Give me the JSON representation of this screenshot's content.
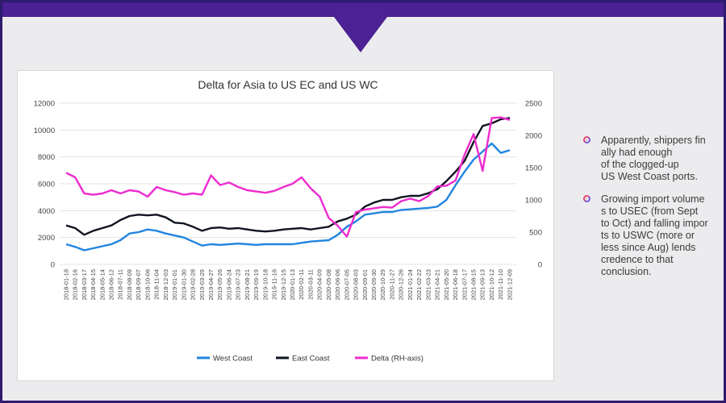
{
  "colors": {
    "frame": "#2e1a6e",
    "banner": "#4b2193",
    "background": "#ececee",
    "west_coast": "#2185e0",
    "east_coast": "#111522",
    "delta": "#ee2bcf"
  },
  "notes": [
    {
      "icon": "bullet-ring-icon",
      "text": "Apparently, shippers fin\nally had enough\nof the clogged-up\nUS West Coast ports."
    },
    {
      "icon": "bullet-ring-icon",
      "text": "Growing import volume\ns to USEC (from Sept\nto Oct) and falling impor\nts to USWC (more or\nless since Aug) lends\ncredence to that\nconclusion."
    }
  ],
  "chart_data": {
    "type": "line",
    "title": "Delta for Asia to US EC and US WC",
    "left_axis": {
      "ylim": [
        0,
        12000
      ],
      "ticks": [
        "0",
        "2000",
        "4000",
        "6000",
        "8000",
        "10000",
        "12000"
      ]
    },
    "right_axis": {
      "ylim": [
        0,
        2500
      ],
      "ticks": [
        "0",
        "500",
        "1000",
        "1500",
        "2000",
        "2500"
      ]
    },
    "grid": true,
    "legend_position": "bottom",
    "x_ticks": [
      "2018-01-18",
      "2018-02-16",
      "2018-03-17",
      "2018-04-15",
      "2018-05-14",
      "2018-06-12",
      "2018-07-11",
      "2018-08-09",
      "2018-09-07",
      "2018-10-06",
      "2018-11-04",
      "2018-12-03",
      "2019-01-01",
      "2019-01-30",
      "2019-02-28",
      "2019-03-29",
      "2019-04-27",
      "2019-05-26",
      "2019-06-24",
      "2019-07-23",
      "2019-08-21",
      "2019-09-19",
      "2019-10-18",
      "2019-11-16",
      "2019-12-15",
      "2020-01-13",
      "2020-02-11",
      "2020-03-11",
      "2020-04-09",
      "2020-05-08",
      "2020-06-06",
      "2020-07-05",
      "2020-08-03",
      "2020-09-01",
      "2020-09-30",
      "2020-10-29",
      "2020-11-27",
      "2020-12-26",
      "2021-01-24",
      "2021-02-22",
      "2021-03-23",
      "2021-04-21",
      "2021-05-20",
      "2021-06-18",
      "2021-07-17",
      "2021-08-15",
      "2021-09-13",
      "2021-10-12",
      "2021-11-10",
      "2021-12-09"
    ],
    "series": [
      {
        "name": "West Coast",
        "axis": "left",
        "values": [
          1500,
          1300,
          1050,
          1200,
          1350,
          1500,
          1800,
          2300,
          2400,
          2600,
          2500,
          2300,
          2150,
          2000,
          1700,
          1400,
          1500,
          1450,
          1500,
          1550,
          1500,
          1450,
          1500,
          1500,
          1500,
          1500,
          1600,
          1700,
          1750,
          1800,
          2200,
          2800,
          3200,
          3700,
          3800,
          3900,
          3900,
          4050,
          4100,
          4150,
          4200,
          4300,
          4800,
          5900,
          6900,
          7800,
          8400,
          9000,
          8300,
          8500
        ]
      },
      {
        "name": "East Coast",
        "axis": "left",
        "values": [
          2900,
          2700,
          2200,
          2500,
          2700,
          2900,
          3300,
          3600,
          3700,
          3650,
          3700,
          3500,
          3100,
          3050,
          2800,
          2500,
          2700,
          2750,
          2650,
          2700,
          2600,
          2500,
          2450,
          2500,
          2600,
          2650,
          2700,
          2600,
          2700,
          2800,
          3200,
          3400,
          3700,
          4300,
          4600,
          4800,
          4800,
          5000,
          5100,
          5100,
          5300,
          5600,
          6200,
          6900,
          7700,
          9100,
          10300,
          10500,
          10800,
          10900
        ]
      },
      {
        "name": "Delta (RH-axis)",
        "axis": "right",
        "values": [
          1420,
          1350,
          1100,
          1080,
          1100,
          1150,
          1100,
          1150,
          1130,
          1050,
          1200,
          1150,
          1120,
          1080,
          1100,
          1080,
          1380,
          1230,
          1270,
          1200,
          1150,
          1130,
          1110,
          1140,
          1200,
          1250,
          1350,
          1180,
          1050,
          720,
          600,
          430,
          810,
          850,
          870,
          890,
          880,
          980,
          1020,
          980,
          1060,
          1210,
          1220,
          1300,
          1700,
          2020,
          1450,
          2270,
          2280,
          2240
        ]
      }
    ]
  }
}
